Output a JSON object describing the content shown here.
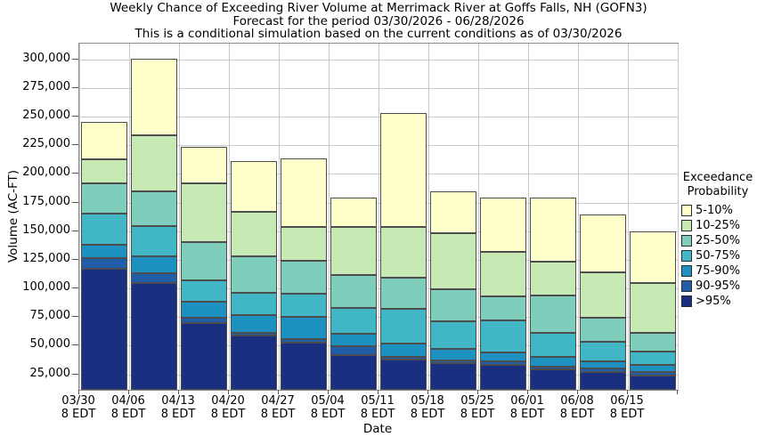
{
  "chart_data": {
    "type": "bar",
    "subtype": "stacked",
    "title_lines": [
      "Weekly Chance of Exceeding River Volume at Merrimack River at Goffs Falls, NH (GOFN3)",
      "Forecast for the period 03/30/2026 - 06/28/2026",
      "This is a conditional simulation based on the current conditions as of 03/30/2026"
    ],
    "xlabel": "Date",
    "ylabel": "Volume (AC-FT)",
    "grid": true,
    "legend": {
      "position": "right",
      "title_lines": [
        "Exceedance",
        "Probability"
      ]
    },
    "series": [
      {
        "name": "5-10%",
        "color": "#FFFFCC"
      },
      {
        "name": "10-25%",
        "color": "#C7E9B4"
      },
      {
        "name": "25-50%",
        "color": "#7FCDBB"
      },
      {
        "name": "50-75%",
        "color": "#41B6C4"
      },
      {
        "name": "75-90%",
        "color": "#1D91C0"
      },
      {
        "name": "90-95%",
        "color": "#225EA8"
      },
      {
        "name": ">95%",
        "color": "#1B2F80"
      }
    ],
    "stack_order_bottom_to_top": [
      ">95%",
      "90-95%",
      "75-90%",
      "50-75%",
      "25-50%",
      "10-25%",
      "5-10%"
    ],
    "y_axis": {
      "min": 11400,
      "max": 313800,
      "tick_values": [
        25000,
        50000,
        75000,
        100000,
        125000,
        150000,
        175000,
        200000,
        225000,
        250000,
        275000,
        300000
      ],
      "tick_labels": [
        "25,000",
        "50,000",
        "75,000",
        "100,000",
        "125,000",
        "150,000",
        "175,000",
        "200,000",
        "225,000",
        "250,000",
        "275,000",
        "300,000"
      ]
    },
    "x_axis_time_suffix": "8 EDT",
    "bars": [
      {
        "date": "03/30",
        "time": "8 EDT",
        "cumulative_tops": [
          117000,
          126500,
          138000,
          165000,
          192000,
          213000,
          245500
        ]
      },
      {
        "date": "04/06",
        "time": "8 EDT",
        "cumulative_tops": [
          104500,
          113000,
          128000,
          154500,
          185000,
          234000,
          300500
        ]
      },
      {
        "date": "04/13",
        "time": "8 EDT",
        "cumulative_tops": [
          69500,
          74000,
          88500,
          107000,
          140500,
          192000,
          223500
        ]
      },
      {
        "date": "04/20",
        "time": "8 EDT",
        "cumulative_tops": [
          58500,
          61500,
          77000,
          96500,
          128000,
          166500,
          211000
        ]
      },
      {
        "date": "04/27",
        "time": "8 EDT",
        "cumulative_tops": [
          52500,
          55500,
          75500,
          95500,
          124000,
          153500,
          213500
        ]
      },
      {
        "date": "05/04",
        "time": "8 EDT",
        "cumulative_tops": [
          42000,
          49500,
          60500,
          83000,
          112000,
          153500,
          179500
        ]
      },
      {
        "date": "05/11",
        "time": "8 EDT",
        "cumulative_tops": [
          38000,
          40500,
          51500,
          82000,
          109000,
          153500,
          253500
        ]
      },
      {
        "date": "05/18",
        "time": "8 EDT",
        "cumulative_tops": [
          34500,
          37000,
          47000,
          71500,
          99500,
          148500,
          184500
        ]
      },
      {
        "date": "05/25",
        "time": "8 EDT",
        "cumulative_tops": [
          33500,
          36500,
          44000,
          72000,
          93000,
          132000,
          179500
        ]
      },
      {
        "date": "06/01",
        "time": "8 EDT",
        "cumulative_tops": [
          29000,
          32000,
          40500,
          61500,
          94000,
          123500,
          179500
        ]
      },
      {
        "date": "06/08",
        "time": "8 EDT",
        "cumulative_tops": [
          27000,
          30000,
          36500,
          53500,
          74000,
          114000,
          164500
        ]
      },
      {
        "date": "06/15",
        "time": "8 EDT",
        "cumulative_tops": [
          24000,
          27000,
          33500,
          45000,
          61500,
          104500,
          150000
        ]
      }
    ]
  }
}
